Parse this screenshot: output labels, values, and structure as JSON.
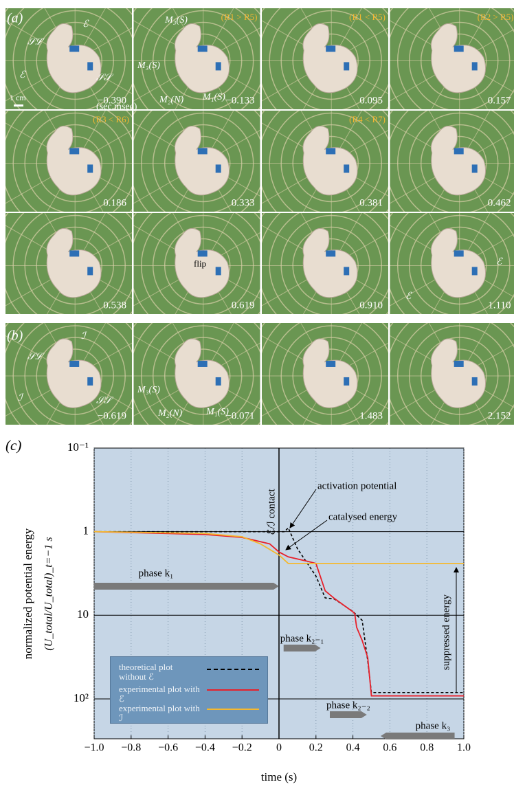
{
  "panel_a": {
    "label": "(a)",
    "frames": [
      {
        "time": "−0.390"
      },
      {
        "time": "−0.133",
        "note": "(R1 > R5)"
      },
      {
        "time": "0.095",
        "note": "(R1 < R5)"
      },
      {
        "time": "0.157",
        "note": "(R2 > R5)"
      },
      {
        "time": "0.186",
        "note": "(R3 < R6)"
      },
      {
        "time": "0.333"
      },
      {
        "time": "0.381",
        "note": "(R4 < R7)"
      },
      {
        "time": "0.462"
      },
      {
        "time": "0.538"
      },
      {
        "time": "0.619"
      },
      {
        "time": "0.910"
      },
      {
        "time": "1.110"
      }
    ],
    "labels": [
      "ℰ",
      "𝒮ℒ",
      "ℰ",
      "𝒮𝒮",
      "1 cm",
      "(sec.msec)",
      "M₃(S)",
      "M₃(S)",
      "M₂(N)",
      "M₁(S)",
      "flip",
      "ℰ",
      "ℰ"
    ]
  },
  "panel_b": {
    "label": "(b)",
    "frames": [
      {
        "time": "−0.619"
      },
      {
        "time": "−0.071"
      },
      {
        "time": "1.483"
      },
      {
        "time": "2.152"
      }
    ],
    "labels": [
      "ℐ",
      "𝒮ℒ",
      "ℐ",
      "𝒮𝒮",
      "M₃(S)",
      "M₂(N)",
      "M₁(S)"
    ]
  },
  "chart_data": {
    "type": "line",
    "panel_label": "(c)",
    "x_label": "time (s)",
    "y_label": [
      "normalized potential energy",
      "(U_total/U_total)_t=−1 s"
    ],
    "xlim": [
      -1,
      1
    ],
    "xticks": [
      {
        "value": -1,
        "label": "−1.0"
      },
      {
        "value": -0.8,
        "label": "−0.8"
      },
      {
        "value": -0.6,
        "label": "−0.6"
      },
      {
        "value": -0.4,
        "label": "−0.4"
      },
      {
        "value": -0.2,
        "label": "−0.2"
      },
      0,
      0.2,
      0.4,
      0.6,
      0.8,
      {
        "value": 1,
        "label": "1.0"
      }
    ],
    "ylim": [
      300,
      0.1
    ],
    "log_y": true,
    "yticks": [
      {
        "value": 0.1,
        "label": "10⁻¹"
      },
      1,
      10,
      {
        "value": 100,
        "label": "10²"
      }
    ],
    "grid": true,
    "series": [
      {
        "name": "theoretical plot without ℰ",
        "color": "#000000",
        "dash": true,
        "x": [
          -1,
          0.03,
          0.05,
          0.1,
          0.2,
          0.25,
          0.3,
          0.4,
          0.45,
          0.48,
          0.5,
          1
        ],
        "values": [
          1,
          1,
          0.9,
          1.6,
          3.4,
          6.2,
          6.4,
          9,
          11.5,
          35,
          84,
          84
        ]
      },
      {
        "name": "experimental plot with ℰ",
        "color": "#e8202a",
        "x": [
          -1,
          -0.4,
          -0.2,
          -0.05,
          0,
          0.05,
          0.15,
          0.2,
          0.25,
          0.3,
          0.4,
          0.41,
          0.42,
          0.45,
          0.48,
          0.5,
          1
        ],
        "values": [
          1,
          1.08,
          1.17,
          1.4,
          1.75,
          2,
          2.25,
          2.4,
          5.1,
          6.3,
          9.1,
          9.6,
          13.9,
          20,
          32,
          92,
          92
        ]
      },
      {
        "name": "experimental plot with ℐ",
        "color": "#f5b82e",
        "x": [
          -1,
          -0.4,
          -0.2,
          -0.1,
          0,
          0.05,
          0.2,
          0.5,
          1
        ],
        "values": [
          1,
          1.05,
          1.15,
          1.4,
          1.9,
          2.4,
          2.4,
          2.4,
          2.4
        ]
      }
    ],
    "contact": {
      "label": "ℰ/ℐ contact",
      "x": 0
    },
    "annotations": [
      "activation potential",
      "catalysed energy",
      "suppressed energy"
    ],
    "phases": [
      {
        "label": "phase k₁",
        "x": [
          -1,
          0
        ]
      },
      {
        "label": "phase k₂₋₁",
        "x": [
          0,
          0.25
        ]
      },
      {
        "label": "phase k₂₋₂",
        "x": [
          0.25,
          0.5
        ]
      },
      {
        "label": "phase k₃",
        "x": [
          0.5,
          1
        ]
      }
    ]
  }
}
